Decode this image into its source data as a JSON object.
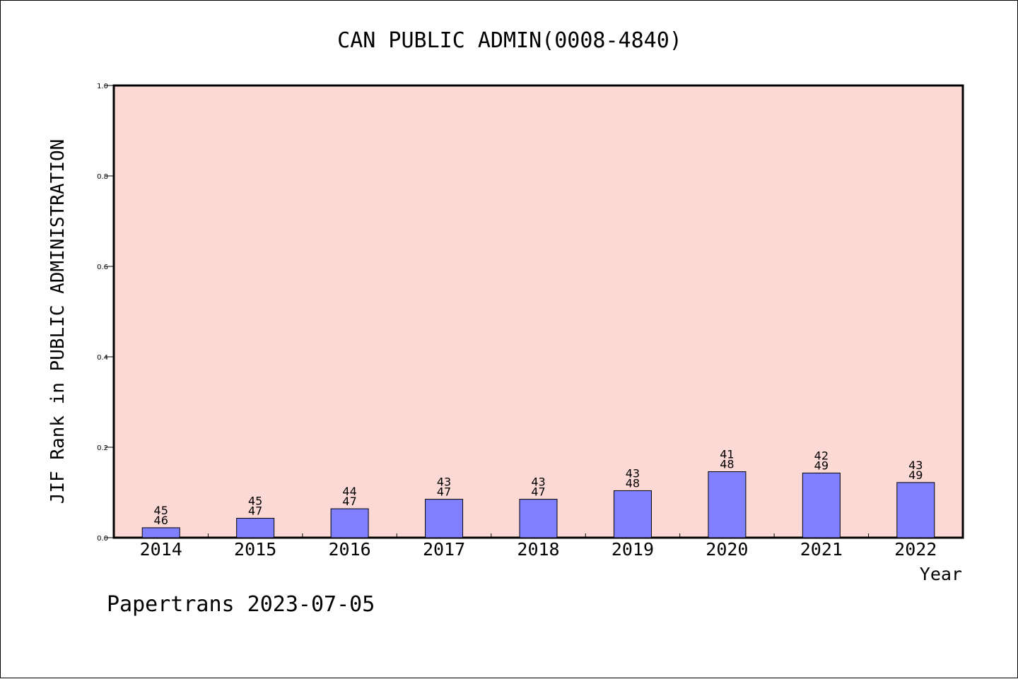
{
  "chart_data": {
    "type": "bar",
    "title": "CAN PUBLIC ADMIN(0008-4840)",
    "xlabel": "Year",
    "ylabel": "JIF Rank in PUBLIC ADMINISTRATION",
    "categories": [
      "2014",
      "2015",
      "2016",
      "2017",
      "2018",
      "2019",
      "2020",
      "2021",
      "2022"
    ],
    "values": [
      0.022,
      0.043,
      0.064,
      0.085,
      0.085,
      0.104,
      0.146,
      0.143,
      0.122
    ],
    "rank": [
      "45",
      "45",
      "44",
      "43",
      "43",
      "43",
      "41",
      "42",
      "43"
    ],
    "total": [
      "46",
      "47",
      "47",
      "47",
      "47",
      "48",
      "48",
      "49",
      "49"
    ],
    "ylim": [
      0,
      1.0
    ],
    "yticks": [
      "0.0",
      "0.2",
      "0.4",
      "0.6",
      "0.8",
      "1.0"
    ],
    "grid": false,
    "plot_background": "#fdd9d6",
    "bar_color": "#8080ff"
  },
  "footer": {
    "text": "Papertrans 2023-07-05"
  }
}
